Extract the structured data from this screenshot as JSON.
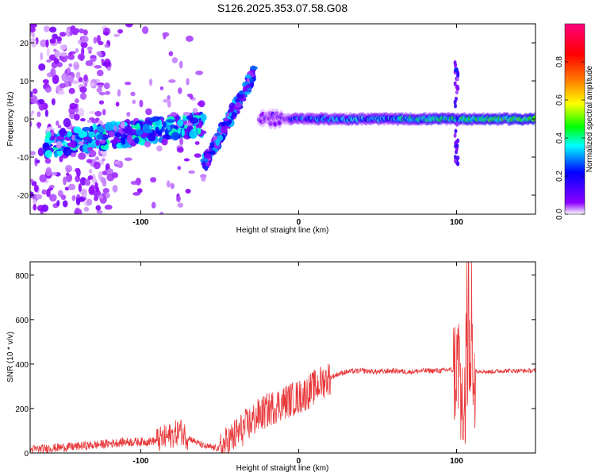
{
  "title": "S126.2025.353.07.58.G08",
  "chart_data": [
    {
      "type": "heatmap",
      "name": "spectrogram",
      "xlabel": "Height of straight line (km)",
      "ylabel": "Frequency (Hz)",
      "xlim": [
        -170,
        150
      ],
      "ylim": [
        -25,
        25
      ],
      "xticks": [
        -100,
        0,
        100
      ],
      "xtick_labels": [
        "-100",
        "0",
        "100"
      ],
      "yticks": [
        20,
        10,
        0,
        -10,
        -20
      ],
      "ytick_labels": [
        "20",
        "10",
        "0",
        "-10",
        "-20"
      ],
      "colorbar": {
        "label": "Normalized spectral amplitude",
        "range": [
          0,
          1
        ],
        "ticks": [
          0.0,
          0.2,
          0.4,
          0.6,
          0.8
        ],
        "tick_labels": [
          "0.0",
          "0.2",
          "0.4",
          "0.6",
          "0.8"
        ],
        "colors": [
          "#ffffff",
          "#8b00ff",
          "#0000ff",
          "#00ffff",
          "#00ff00",
          "#ffff00",
          "#ff8000",
          "#ff0000",
          "#ff0080"
        ]
      },
      "features": [
        {
          "kind": "noise-cloud",
          "x": [
            -170,
            -120
          ],
          "freq": [
            -25,
            25
          ],
          "amplitude": 0.08
        },
        {
          "kind": "ridge",
          "x": [
            -160,
            -60
          ],
          "freq": [
            -7,
            -1
          ],
          "amplitude": 0.25
        },
        {
          "kind": "diagonal-ridge",
          "x": [
            -60,
            -28
          ],
          "freq": [
            -12,
            12
          ],
          "amplitude": 0.2
        },
        {
          "kind": "carrier",
          "x": [
            -25,
            150
          ],
          "freq": [
            0,
            0
          ],
          "amplitude": 0.6
        },
        {
          "kind": "spike",
          "x": [
            100,
            100
          ],
          "freq": [
            -12,
            15
          ],
          "amplitude": 0.2
        }
      ]
    },
    {
      "type": "line",
      "name": "snr",
      "xlabel": "Height of straight line (km)",
      "ylabel": "SNR (10 * v/v)",
      "xlim": [
        -170,
        150
      ],
      "ylim": [
        0,
        860
      ],
      "xticks": [
        -100,
        0,
        100
      ],
      "xtick_labels": [
        "-100",
        "0",
        "100"
      ],
      "yticks": [
        0,
        200,
        400,
        600,
        800
      ],
      "ytick_labels": [
        "0",
        "200",
        "400",
        "600",
        "800"
      ],
      "color": "#e8383a",
      "series": [
        {
          "name": "SNR",
          "x": [
            -170,
            -150,
            -130,
            -110,
            -100,
            -90,
            -80,
            -75,
            -70,
            -60,
            -50,
            -45,
            -40,
            -35,
            -30,
            -25,
            -20,
            -15,
            -10,
            -5,
            0,
            5,
            10,
            15,
            20,
            25,
            30,
            40,
            50,
            60,
            70,
            80,
            90,
            95,
            100,
            102,
            104,
            106,
            108,
            110,
            115,
            120,
            130,
            140,
            150
          ],
          "y": [
            15,
            25,
            35,
            50,
            50,
            55,
            80,
            100,
            70,
            30,
            20,
            45,
            80,
            110,
            140,
            170,
            190,
            210,
            225,
            240,
            250,
            270,
            295,
            320,
            340,
            355,
            365,
            370,
            365,
            370,
            365,
            370,
            370,
            375,
            370,
            450,
            300,
            500,
            380,
            370,
            370,
            365,
            370,
            370,
            370
          ]
        }
      ],
      "noise_amplitude": [
        {
          "x": [
            -170,
            -90
          ],
          "amp": 20
        },
        {
          "x": [
            -90,
            -70
          ],
          "amp": 60
        },
        {
          "x": [
            -70,
            -50
          ],
          "amp": 15
        },
        {
          "x": [
            -50,
            20
          ],
          "amp": 80
        },
        {
          "x": [
            20,
            98
          ],
          "amp": 12
        },
        {
          "x": [
            98,
            112
          ],
          "amp": 260
        },
        {
          "x": [
            112,
            150
          ],
          "amp": 10
        }
      ]
    }
  ]
}
